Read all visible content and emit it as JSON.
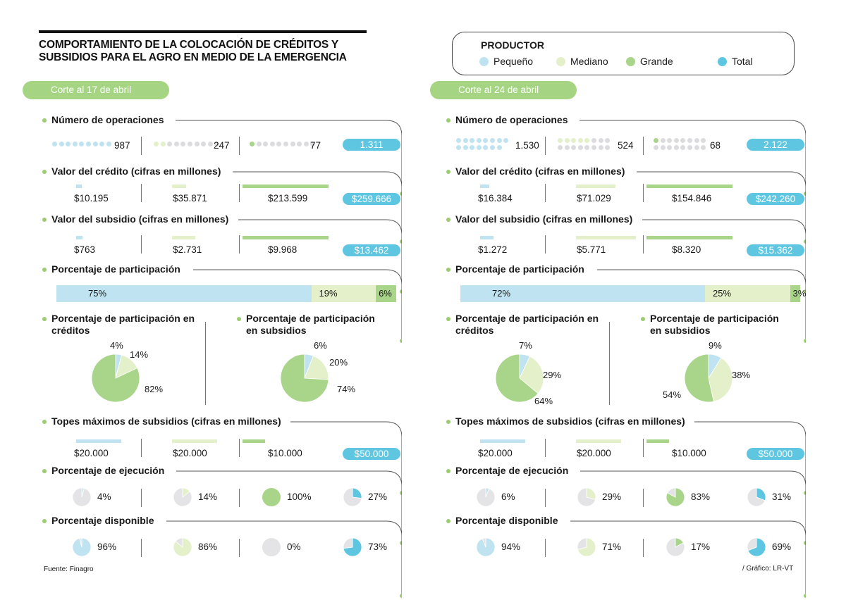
{
  "title": "COMPORTAMIENTO DE LA COLOCACIÓN DE CRÉDITOS Y SUBSIDIOS PARA EL AGRO EN MEDIO DE LA EMERGENCIA",
  "legend": {
    "title": "PRODUCTOR",
    "items": [
      {
        "label": "Pequeño",
        "color": "#bfe3f1"
      },
      {
        "label": "Mediano",
        "color": "#e3f0c9"
      },
      {
        "label": "Grande",
        "color": "#a8d58a"
      },
      {
        "label": "Total",
        "color": "#5ec6e0"
      }
    ]
  },
  "labels": {
    "operaciones": "Número de operaciones",
    "credito": "Valor del crédito (cifras en millones)",
    "subsidio": "Valor del subsidio (cifras en millones)",
    "participacion": "Porcentaje de participación",
    "part_creditos": "Porcentaje de participación en créditos",
    "part_subsidios": "Porcentaje de participación en subsidios",
    "topes": "Topes máximos de subsidios (cifras en millones)",
    "ejecucion": "Porcentaje de ejecución",
    "disponible": "Porcentaje disponible"
  },
  "source": "Fuente: Finagro",
  "credit": "/ Gráfico: LR-VT",
  "chart_data": [
    {
      "type": "table",
      "period": "Corte al 17 de abril",
      "operaciones": {
        "values": [
          987,
          247,
          77
        ],
        "labels": [
          "987",
          "247",
          "77"
        ],
        "total": "1.311",
        "dots": [
          [
            9,
            0
          ],
          [
            2,
            8
          ],
          [
            1,
            9
          ]
        ]
      },
      "credito": {
        "values": [
          10195,
          35871,
          213599
        ],
        "labels": [
          "$10.195",
          "$35.871",
          "$213.599"
        ],
        "total": "$259.666"
      },
      "subsidio": {
        "values": [
          763,
          2731,
          9968
        ],
        "labels": [
          "$763",
          "$2.731",
          "$9.968"
        ],
        "total": "$13.462"
      },
      "participacion": {
        "values": [
          75,
          19,
          6
        ],
        "labels": [
          "75%",
          "19%",
          "6%"
        ]
      },
      "part_creditos": {
        "values": [
          4,
          14,
          82
        ],
        "labels": [
          "4%",
          "14%",
          "82%"
        ]
      },
      "part_subsidios": {
        "values": [
          6,
          20,
          74
        ],
        "labels": [
          "6%",
          "20%",
          "74%"
        ]
      },
      "topes": {
        "values": [
          20000,
          20000,
          10000
        ],
        "labels": [
          "$20.000",
          "$20.000",
          "$10.000"
        ],
        "total": "$50.000"
      },
      "ejecucion": {
        "values": [
          4,
          14,
          100,
          27
        ],
        "labels": [
          "4%",
          "14%",
          "100%",
          "27%"
        ]
      },
      "disponible": {
        "values": [
          96,
          86,
          0,
          73
        ],
        "labels": [
          "96%",
          "86%",
          "0%",
          "73%"
        ]
      }
    },
    {
      "type": "table",
      "period": "Corte al 24 de abril",
      "operaciones": {
        "values": [
          1530,
          524,
          68
        ],
        "labels": [
          "1.530",
          "524",
          "68"
        ],
        "total": "2.122",
        "dots": [
          [
            15,
            0
          ],
          [
            5,
            11
          ],
          [
            1,
            15
          ]
        ]
      },
      "credito": {
        "values": [
          16384,
          71029,
          154846
        ],
        "labels": [
          "$16.384",
          "$71.029",
          "$154.846"
        ],
        "total": "$242.260"
      },
      "subsidio": {
        "values": [
          1272,
          5771,
          8320
        ],
        "labels": [
          "$1.272",
          "$5.771",
          "$8.320"
        ],
        "total": "$15.362"
      },
      "participacion": {
        "values": [
          72,
          25,
          3
        ],
        "labels": [
          "72%",
          "25%",
          "3%"
        ]
      },
      "part_creditos": {
        "values": [
          7,
          29,
          64
        ],
        "labels": [
          "7%",
          "29%",
          "64%"
        ]
      },
      "part_subsidios": {
        "values": [
          9,
          38,
          54
        ],
        "labels": [
          "9%",
          "38%",
          "54%"
        ]
      },
      "topes": {
        "values": [
          20000,
          20000,
          10000
        ],
        "labels": [
          "$20.000",
          "$20.000",
          "$10.000"
        ],
        "total": "$50.000"
      },
      "ejecucion": {
        "values": [
          6,
          29,
          83,
          31
        ],
        "labels": [
          "6%",
          "29%",
          "83%",
          "31%"
        ]
      },
      "disponible": {
        "values": [
          94,
          71,
          17,
          69
        ],
        "labels": [
          "94%",
          "71%",
          "17%",
          "69%"
        ]
      }
    }
  ]
}
